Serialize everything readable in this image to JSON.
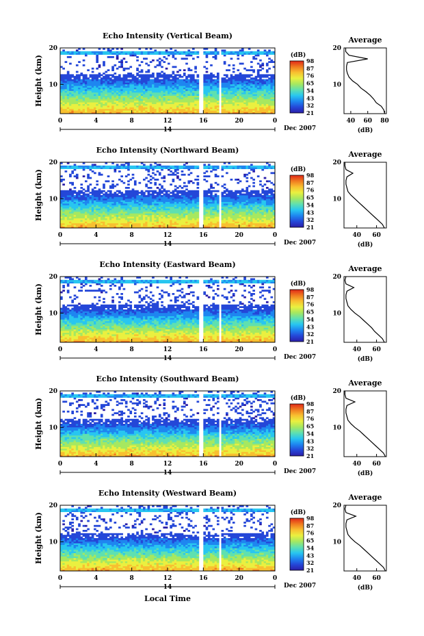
{
  "figure": {
    "x_axis_label": "Local Time",
    "date_label": "14",
    "month_year_label": "Dec 2007",
    "y_axis_label": "Height (km)",
    "colorbar_unit": "(dB)",
    "average_title": "Average",
    "average_xlabel": "(dB)",
    "colorbar_colors": [
      "#2b1ea8",
      "#2447d8",
      "#1e86f0",
      "#28c6f0",
      "#5fe0b0",
      "#a6e860",
      "#eaf040",
      "#f8c030",
      "#f07a20",
      "#e02818"
    ]
  },
  "chart_data": [
    {
      "type": "heatmap",
      "title": "Echo Intensity (Vertical Beam)",
      "x_ticks": [
        "0",
        "4",
        "8",
        "12",
        "16",
        "20",
        "0"
      ],
      "y_ticks": [
        "20",
        "10"
      ],
      "xlim": [
        0,
        24
      ],
      "ylim": [
        2,
        20
      ],
      "colorbar_ticks": [
        "98",
        "87",
        "76",
        "65",
        "54",
        "43",
        "32",
        "21"
      ],
      "colorbar_range": [
        21,
        98
      ],
      "gaps_hours": [
        [
          15.4,
          15.9
        ],
        [
          17.7,
          18.0
        ]
      ],
      "profile": {
        "x_ticks": [
          "40",
          "60",
          "80"
        ],
        "xlim": [
          32,
          82
        ],
        "height_km": [
          2,
          3,
          4,
          5,
          6,
          7,
          8,
          9,
          10,
          11,
          12,
          13,
          14,
          15,
          16,
          17,
          18,
          19,
          20
        ],
        "intensity_db": [
          80,
          79,
          76,
          70,
          67,
          63,
          58,
          52,
          48,
          42,
          38,
          36,
          35,
          35,
          36,
          60,
          38,
          34,
          34
        ]
      }
    },
    {
      "type": "heatmap",
      "title": "Echo Intensity (Northward Beam)",
      "x_ticks": [
        "0",
        "4",
        "8",
        "12",
        "16",
        "20",
        "0"
      ],
      "y_ticks": [
        "20",
        "10"
      ],
      "xlim": [
        0,
        24
      ],
      "ylim": [
        2,
        20
      ],
      "colorbar_ticks": [
        "98",
        "87",
        "76",
        "65",
        "54",
        "43",
        "32",
        "21"
      ],
      "colorbar_range": [
        21,
        98
      ],
      "gaps_hours": [
        [
          15.4,
          15.9
        ],
        [
          17.7,
          18.0
        ]
      ],
      "profile": {
        "x_ticks": [
          "40",
          "60"
        ],
        "xlim": [
          27,
          70
        ],
        "height_km": [
          2,
          3,
          4,
          5,
          6,
          7,
          8,
          9,
          10,
          11,
          12,
          13,
          14,
          15,
          16,
          17,
          18,
          19,
          20
        ],
        "intensity_db": [
          68,
          66,
          62,
          58,
          54,
          50,
          46,
          42,
          38,
          34,
          31,
          30,
          29,
          29,
          30,
          36,
          29,
          28,
          28
        ]
      }
    },
    {
      "type": "heatmap",
      "title": "Echo Intensity (Eastward Beam)",
      "x_ticks": [
        "0",
        "4",
        "8",
        "12",
        "16",
        "20",
        "0"
      ],
      "y_ticks": [
        "20",
        "10"
      ],
      "xlim": [
        0,
        24
      ],
      "ylim": [
        2,
        20
      ],
      "colorbar_ticks": [
        "98",
        "87",
        "76",
        "65",
        "54",
        "43",
        "32",
        "21"
      ],
      "colorbar_range": [
        21,
        98
      ],
      "gaps_hours": [
        [
          15.4,
          15.9
        ],
        [
          17.7,
          18.0
        ]
      ],
      "profile": {
        "x_ticks": [
          "40",
          "60"
        ],
        "xlim": [
          27,
          70
        ],
        "height_km": [
          2,
          3,
          4,
          5,
          6,
          7,
          8,
          9,
          10,
          11,
          12,
          13,
          14,
          15,
          16,
          17,
          18,
          19,
          20
        ],
        "intensity_db": [
          68,
          66,
          62,
          58,
          55,
          51,
          47,
          43,
          38,
          34,
          31,
          30,
          29,
          29,
          30,
          37,
          29,
          28,
          29
        ]
      }
    },
    {
      "type": "heatmap",
      "title": "Echo Intensity (Southward Beam)",
      "x_ticks": [
        "0",
        "4",
        "8",
        "12",
        "16",
        "20",
        "0"
      ],
      "y_ticks": [
        "20",
        "10"
      ],
      "xlim": [
        0,
        24
      ],
      "ylim": [
        2,
        20
      ],
      "colorbar_ticks": [
        "98",
        "87",
        "76",
        "65",
        "54",
        "43",
        "32",
        "21"
      ],
      "colorbar_range": [
        21,
        98
      ],
      "gaps_hours": [
        [
          15.4,
          15.9
        ],
        [
          17.7,
          18.0
        ]
      ],
      "profile": {
        "x_ticks": [
          "40",
          "60"
        ],
        "xlim": [
          27,
          70
        ],
        "height_km": [
          2,
          3,
          4,
          5,
          6,
          7,
          8,
          9,
          10,
          11,
          12,
          13,
          14,
          15,
          16,
          17,
          18,
          19,
          20
        ],
        "intensity_db": [
          69,
          67,
          63,
          59,
          55,
          51,
          47,
          43,
          38,
          34,
          31,
          30,
          29,
          29,
          30,
          38,
          29,
          28,
          28
        ]
      }
    },
    {
      "type": "heatmap",
      "title": "Echo Intensity (Westward Beam)",
      "x_ticks": [
        "0",
        "4",
        "8",
        "12",
        "16",
        "20",
        "0"
      ],
      "y_ticks": [
        "20",
        "10"
      ],
      "xlim": [
        0,
        24
      ],
      "ylim": [
        2,
        20
      ],
      "colorbar_ticks": [
        "98",
        "87",
        "76",
        "65",
        "54",
        "43",
        "32",
        "21"
      ],
      "colorbar_range": [
        21,
        98
      ],
      "gaps_hours": [
        [
          15.4,
          15.9
        ],
        [
          17.7,
          18.0
        ]
      ],
      "profile": {
        "x_ticks": [
          "40",
          "60"
        ],
        "xlim": [
          27,
          70
        ],
        "height_km": [
          2,
          3,
          4,
          5,
          6,
          7,
          8,
          9,
          10,
          11,
          12,
          13,
          14,
          15,
          16,
          17,
          18,
          19,
          20
        ],
        "intensity_db": [
          69,
          67,
          63,
          59,
          55,
          51,
          47,
          43,
          38,
          34,
          31,
          30,
          29,
          29,
          30,
          39,
          29,
          28,
          29
        ]
      }
    }
  ]
}
